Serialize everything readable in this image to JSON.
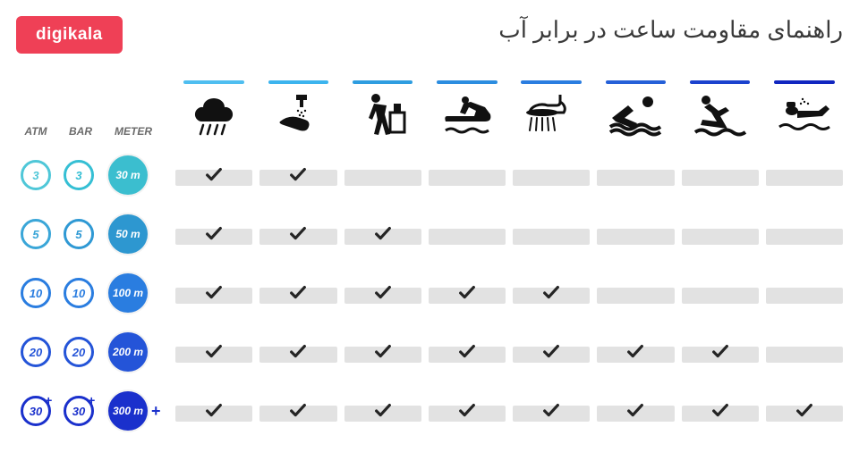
{
  "logo_text": "digikala",
  "logo_bg": "#ef4056",
  "title": "راهنمای مقاومت ساعت در برابر آب",
  "title_color": "#3a3a3a",
  "background_color": "#ffffff",
  "cell_bg": "#e2e2e2",
  "check_color": "#252525",
  "unit_headers": {
    "atm": "ATM",
    "bar": "BAR",
    "meter": "METER",
    "color": "#6b6b6b"
  },
  "activities": [
    {
      "name": "rain",
      "bar_color": "#4fbef0",
      "icon": "rain"
    },
    {
      "name": "wash",
      "bar_color": "#3cb4ee",
      "icon": "wash"
    },
    {
      "name": "work",
      "bar_color": "#2e9de0",
      "icon": "work"
    },
    {
      "name": "jetski",
      "bar_color": "#2b8de0",
      "icon": "jetski"
    },
    {
      "name": "shower",
      "bar_color": "#2a7de0",
      "icon": "shower"
    },
    {
      "name": "swim",
      "bar_color": "#2560d8",
      "icon": "swim"
    },
    {
      "name": "dive",
      "bar_color": "#1b42ce",
      "icon": "dive"
    },
    {
      "name": "scuba",
      "bar_color": "#1126c0",
      "icon": "scuba"
    }
  ],
  "rows": [
    {
      "atm": "3",
      "bar": "3",
      "meter": "30 m",
      "atm_color": "#4fc7d8",
      "bar_color": "#35bfd4",
      "meter_bg": "#3bbecf",
      "plus": false,
      "checks": [
        true,
        true,
        false,
        false,
        false,
        false,
        false,
        false
      ]
    },
    {
      "atm": "5",
      "bar": "5",
      "meter": "50 m",
      "atm_color": "#3aa6d8",
      "bar_color": "#2f99d4",
      "meter_bg": "#2d97d0",
      "plus": false,
      "checks": [
        true,
        true,
        true,
        false,
        false,
        false,
        false,
        false
      ]
    },
    {
      "atm": "10",
      "bar": "10",
      "meter": "100 m",
      "atm_color": "#2a7de0",
      "bar_color": "#2a7de0",
      "meter_bg": "#2a7de0",
      "plus": false,
      "checks": [
        true,
        true,
        true,
        true,
        true,
        false,
        false,
        false
      ]
    },
    {
      "atm": "20",
      "bar": "20",
      "meter": "200 m",
      "atm_color": "#2454d8",
      "bar_color": "#2454d8",
      "meter_bg": "#2454d8",
      "plus": false,
      "checks": [
        true,
        true,
        true,
        true,
        true,
        true,
        true,
        false
      ]
    },
    {
      "atm": "30",
      "bar": "30",
      "meter": "300 m",
      "atm_color": "#1a30cc",
      "bar_color": "#1a30cc",
      "meter_bg": "#1a30cc",
      "plus": true,
      "checks": [
        true,
        true,
        true,
        true,
        true,
        true,
        true,
        true
      ]
    }
  ]
}
